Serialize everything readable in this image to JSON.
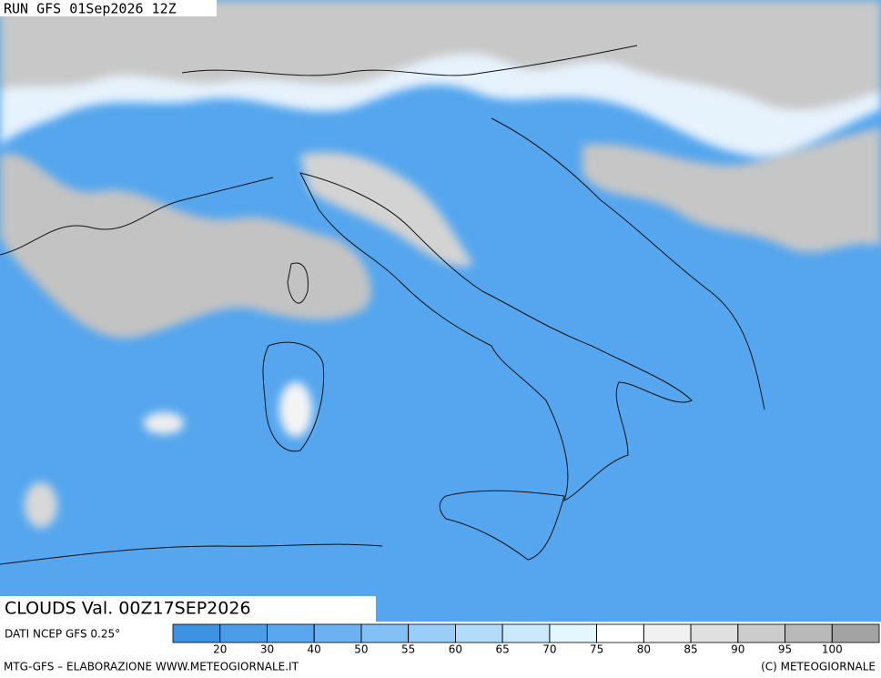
{
  "header": {
    "run": "RUN GFS 01Sep2026 12Z"
  },
  "map": {
    "caption": "CLOUDS Val. 00Z17SEP2026",
    "source": "DATI NCEP GFS 0.25°"
  },
  "legend": {
    "labels": [
      20,
      30,
      40,
      50,
      55,
      60,
      65,
      70,
      75,
      80,
      85,
      90,
      95,
      100
    ],
    "colors": [
      "#3d92e4",
      "#4b9dea",
      "#5aa7ef",
      "#6cb2f2",
      "#82c0f5",
      "#9acdf7",
      "#b3dbfa",
      "#cbe9fc",
      "#e2f7fe",
      "#ffffff",
      "#f1f1f1",
      "#e0e0e0",
      "#cccccc",
      "#b9b9b9",
      "#a3a3a3"
    ]
  },
  "footer": {
    "left": "MTG-GFS – ELABORAZIONE WWW.METEOGIORNALE.IT",
    "right": "(C) METEOGIORNALE"
  }
}
